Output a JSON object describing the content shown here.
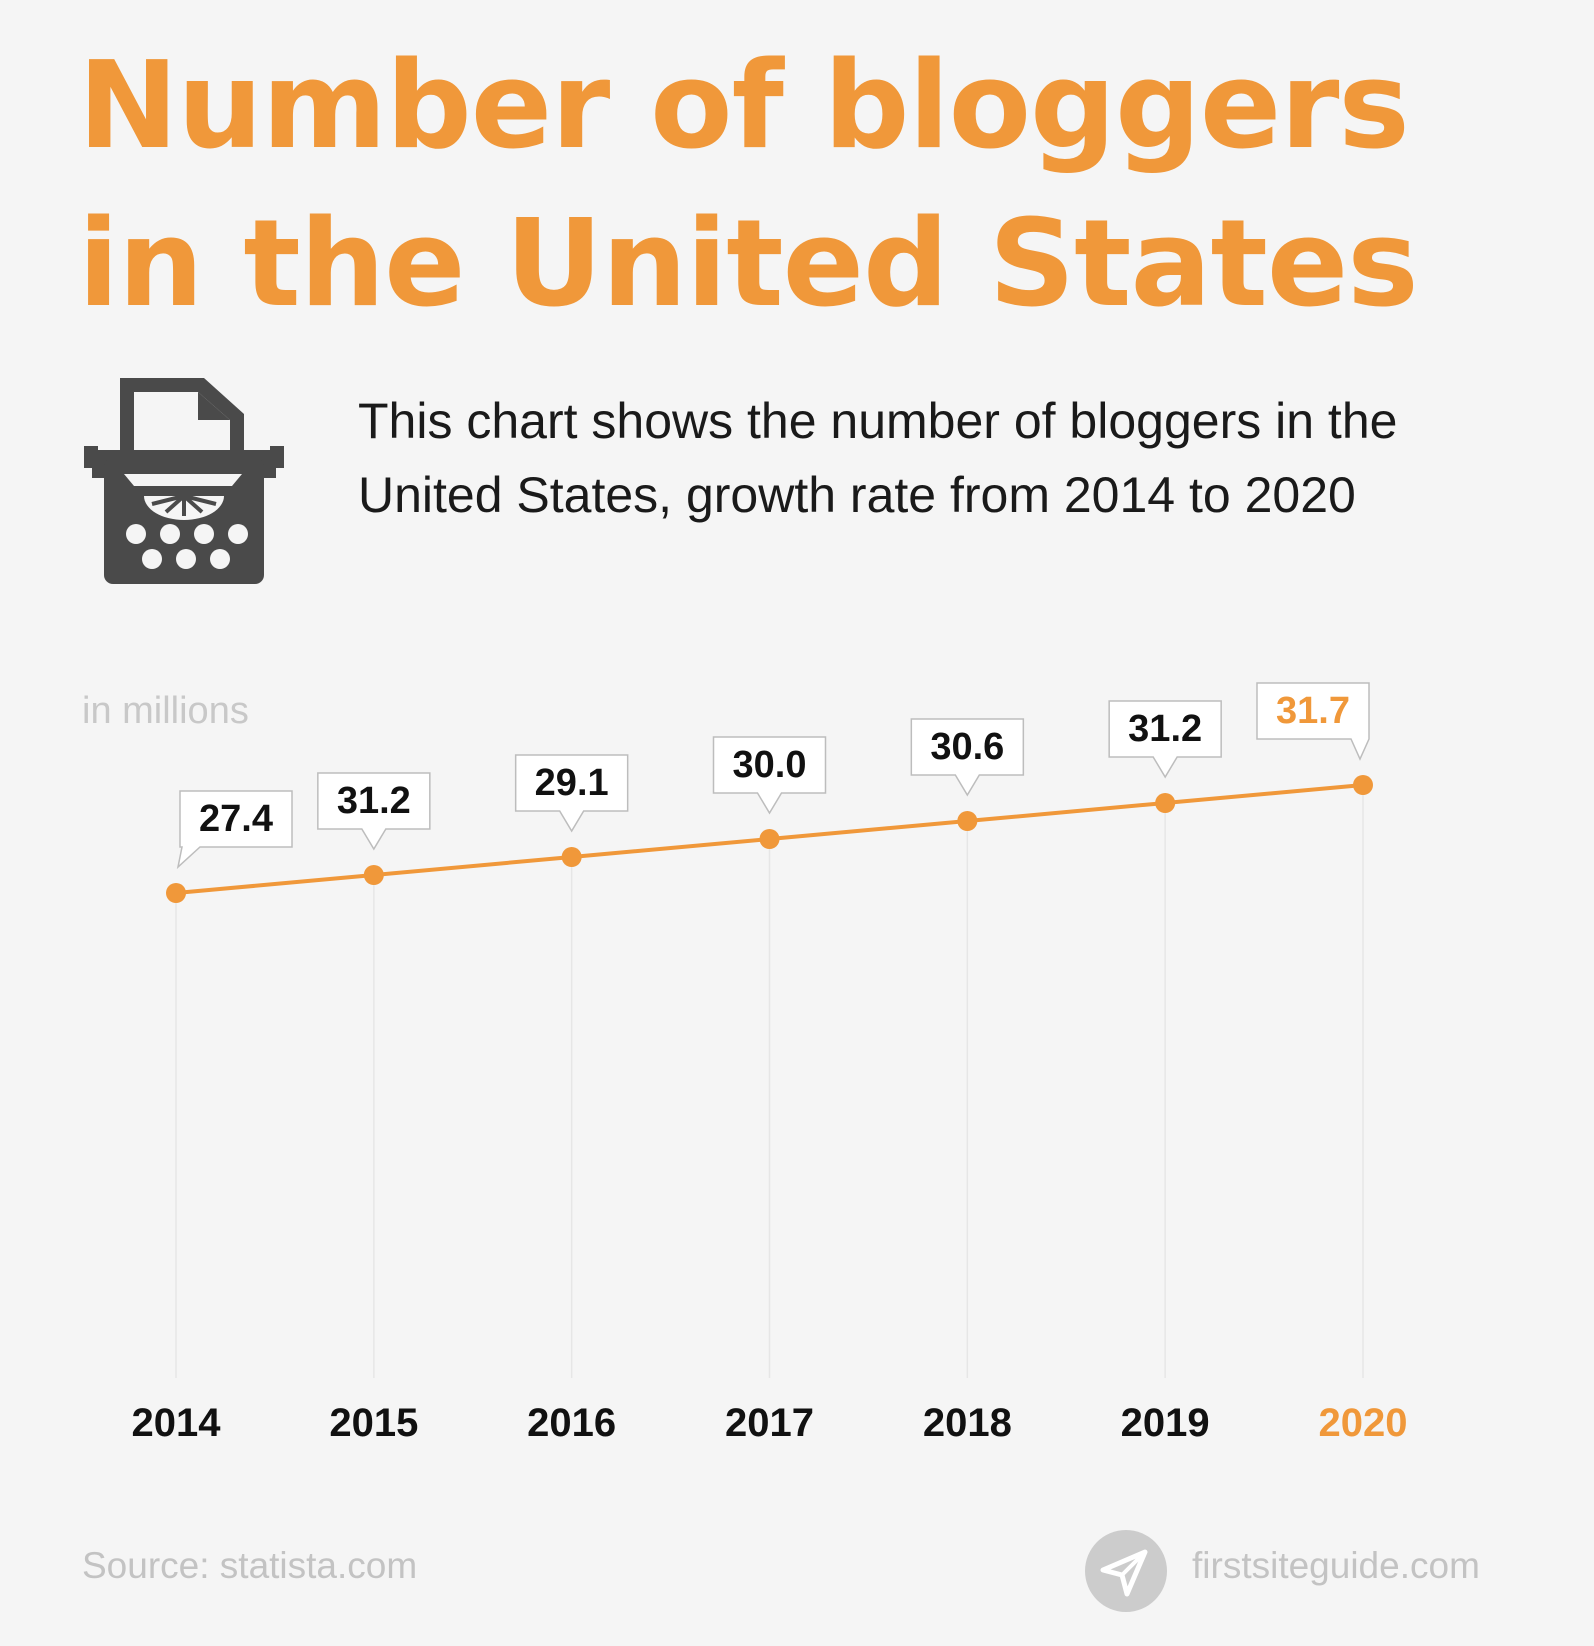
{
  "header": {
    "title_line1": "Number of bloggers",
    "title_line2": "in the United States",
    "description_line1": "This chart shows the number of bloggers in the",
    "description_line2": "United States, growth rate from 2014 to 2020"
  },
  "icon": "typewriter-icon",
  "chart_data": {
    "type": "line",
    "ylabel": "in millions",
    "categories": [
      "2014",
      "2015",
      "2016",
      "2017",
      "2018",
      "2019",
      "2020"
    ],
    "values": [
      27.4,
      31.2,
      29.1,
      30.0,
      30.6,
      31.2,
      31.7
    ],
    "data_labels": [
      "27.4",
      "31.2",
      "29.1",
      "30.0",
      "30.6",
      "31.2",
      "31.7"
    ],
    "highlight_category": "2020",
    "grid": "vertical",
    "colors": {
      "line": "#f0983a",
      "highlight": "#f0983a",
      "text": "#111111",
      "grid": "#e6e6e6"
    }
  },
  "footer": {
    "source": "Source: statista.com",
    "brand": "firstsiteguide.com",
    "brand_icon": "paper-plane-icon"
  }
}
